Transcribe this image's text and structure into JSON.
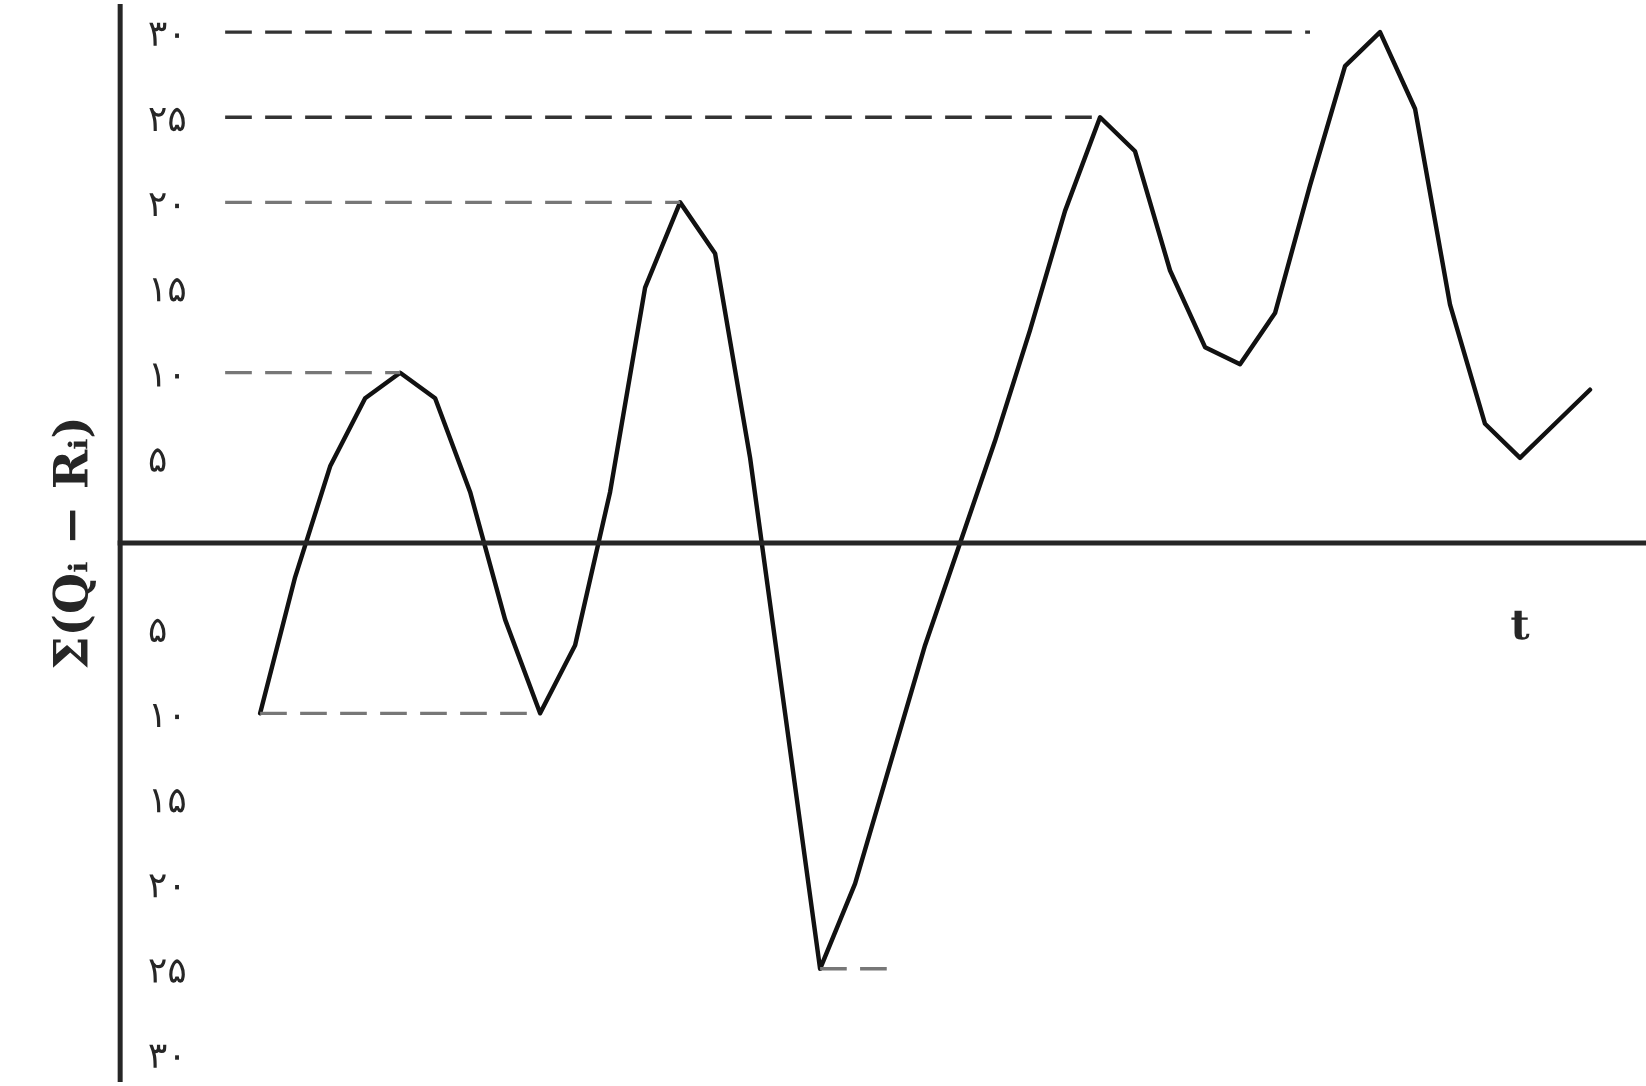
{
  "chart_data": {
    "type": "line",
    "xlabel": "t",
    "ylabel": "Σ(Qᵢ − Rᵢ)",
    "categories": [
      null,
      null,
      null,
      null,
      null,
      null,
      null,
      null,
      null,
      null,
      null,
      null,
      null,
      null,
      null,
      null,
      null,
      null,
      null,
      null,
      null,
      null,
      null,
      null,
      null,
      null,
      null,
      null,
      null,
      null,
      null,
      null,
      null,
      null,
      null,
      null,
      null,
      null,
      null,
      null,
      null,
      null,
      null
    ],
    "ylim": [
      -31.5,
      31.5
    ],
    "yticks": [
      {
        "value": 30,
        "label": "۳۰"
      },
      {
        "value": 25,
        "label": "۲۵"
      },
      {
        "value": 20,
        "label": "۲۰"
      },
      {
        "value": 15,
        "label": "۱۵"
      },
      {
        "value": 10,
        "label": "۱۰"
      },
      {
        "value": 5,
        "label": "۵"
      },
      {
        "value": -5,
        "label": "۵"
      },
      {
        "value": -10,
        "label": "۱۰"
      },
      {
        "value": -15,
        "label": "۱۵"
      },
      {
        "value": -20,
        "label": "۲۰"
      },
      {
        "value": -25,
        "label": "۲۵"
      },
      {
        "value": -30,
        "label": "۳۰"
      }
    ],
    "grid": false,
    "tick_labels": "y",
    "series": [
      {
        "color": "#111111",
        "line_style": "solid",
        "values": [
          null,
          null,
          null,
          null,
          -10,
          -2,
          4.5,
          8.5,
          10,
          8.5,
          3,
          -4.5,
          -10,
          -6,
          3,
          15,
          20,
          17,
          5,
          -10,
          -25,
          -20,
          -13,
          -6,
          0,
          6,
          12.5,
          19.5,
          25,
          23,
          16,
          11.5,
          10.5,
          13.5,
          21,
          28,
          30,
          25.5,
          14,
          7,
          5,
          7,
          9
        ]
      },
      {
        "color": "#333333",
        "line_style": "dashed",
        "values": [
          null,
          null,
          null,
          30,
          30,
          30,
          30,
          30,
          30,
          30,
          30,
          30,
          30,
          30,
          30,
          30,
          30,
          30,
          30,
          30,
          30,
          30,
          30,
          30,
          30,
          30,
          30,
          30,
          30,
          30,
          30,
          30,
          30,
          30,
          30,
          null,
          null,
          null,
          null,
          null,
          null,
          null,
          null
        ]
      },
      {
        "color": "#333333",
        "line_style": "dashed",
        "values": [
          null,
          null,
          null,
          25,
          25,
          25,
          25,
          25,
          25,
          25,
          25,
          25,
          25,
          25,
          25,
          25,
          25,
          25,
          25,
          25,
          25,
          25,
          25,
          25,
          25,
          25,
          25,
          25,
          25,
          null,
          null,
          null,
          null,
          null,
          null,
          null,
          null,
          null,
          null,
          null,
          null,
          null,
          null
        ]
      },
      {
        "color": "#777777",
        "line_style": "dashed",
        "values": [
          null,
          null,
          null,
          20,
          20,
          20,
          20,
          20,
          20,
          20,
          20,
          20,
          20,
          20,
          20,
          20,
          20,
          null,
          null,
          null,
          null,
          null,
          null,
          null,
          null,
          null,
          null,
          null,
          null,
          null,
          null,
          null,
          null,
          null,
          null,
          null,
          null,
          null,
          null,
          null,
          null,
          null,
          null
        ]
      },
      {
        "color": "#777777",
        "line_style": "dashed",
        "values": [
          null,
          null,
          null,
          10,
          10,
          10,
          10,
          10,
          10,
          null,
          null,
          null,
          null,
          null,
          null,
          null,
          null,
          null,
          null,
          null,
          null,
          null,
          null,
          null,
          null,
          null,
          null,
          null,
          null,
          null,
          null,
          null,
          null,
          null,
          null,
          null,
          null,
          null,
          null,
          null,
          null,
          null,
          null
        ]
      },
      {
        "color": "#777777",
        "line_style": "dashed",
        "values": [
          null,
          null,
          null,
          null,
          -10,
          -10,
          -10,
          -10,
          -10,
          -10,
          -10,
          -10,
          -10,
          null,
          null,
          null,
          null,
          null,
          null,
          null,
          null,
          null,
          null,
          null,
          null,
          null,
          null,
          null,
          null,
          null,
          null,
          null,
          null,
          null,
          null,
          null,
          null,
          null,
          null,
          null,
          null,
          null,
          null
        ]
      },
      {
        "color": "#777777",
        "line_style": "dashed",
        "values": [
          null,
          null,
          null,
          null,
          null,
          null,
          null,
          null,
          null,
          null,
          null,
          null,
          null,
          null,
          null,
          null,
          null,
          null,
          null,
          null,
          -25,
          -25,
          -25,
          null,
          null,
          null,
          null,
          null,
          null,
          null,
          null,
          null,
          null,
          null,
          null,
          null,
          null,
          null,
          null,
          null,
          null,
          null,
          null
        ]
      }
    ]
  }
}
